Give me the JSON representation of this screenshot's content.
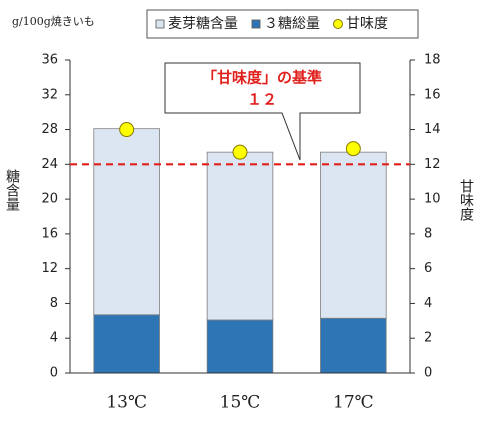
{
  "chart_data": {
    "type": "bar",
    "stacked": true,
    "unit_label": "g/100g焼きいも",
    "y_label": "糖含量",
    "y2_label": "甘味度",
    "categories": [
      "13℃",
      "15℃",
      "17℃"
    ],
    "series": [
      {
        "name": "３糖総量",
        "type": "bar",
        "color": "#2e75b6",
        "values": [
          6.7,
          6.1,
          6.3
        ]
      },
      {
        "name": "麦芽糖含量",
        "type": "bar",
        "color": "#dce6f2",
        "values": [
          21.4,
          19.3,
          19.1
        ]
      },
      {
        "name": "甘味度",
        "type": "scatter",
        "axis": "y2",
        "color": "#ffff00",
        "values": [
          14.0,
          12.7,
          12.9
        ]
      }
    ],
    "legend_order": [
      1,
      0,
      2
    ],
    "reference_line": {
      "axis": "y2",
      "value": 12,
      "label": "１２",
      "text": "「甘味度」の基準",
      "color": "#e0201c"
    },
    "ylim": [
      0,
      36
    ],
    "yticks": [
      0,
      4,
      8,
      12,
      16,
      20,
      24,
      28,
      32,
      36
    ],
    "y2lim": [
      0,
      18
    ],
    "y2ticks": [
      0,
      2,
      4,
      6,
      8,
      10,
      12,
      14,
      16,
      18
    ],
    "grid": false
  }
}
